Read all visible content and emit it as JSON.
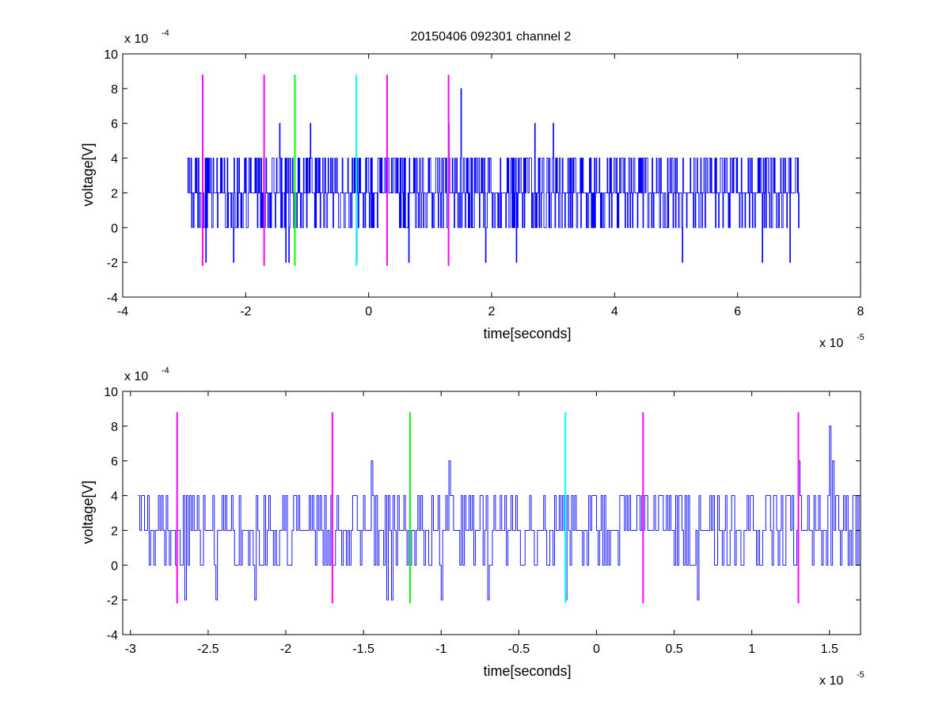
{
  "figure_title": "20150406 092301 channel 2",
  "chart_data": [
    {
      "type": "line",
      "title": "20150406 092301 channel 2",
      "xlabel": "time[seconds]",
      "ylabel": "voltage[V]",
      "x_multiplier": "x 10",
      "x_exponent": "-5",
      "y_multiplier": "x 10",
      "y_exponent": "-4",
      "xlim": [
        -4,
        8
      ],
      "ylim": [
        -4,
        10
      ],
      "x_ticks": [
        "-4",
        "-2",
        "0",
        "2",
        "4",
        "6",
        "8"
      ],
      "y_ticks": [
        "-4",
        "-2",
        "0",
        "2",
        "4",
        "6",
        "8",
        "10"
      ],
      "grid": false,
      "signal": {
        "color": "#0000ff",
        "x_start": -2.95,
        "x_end": 7.0,
        "levels": [
          -2,
          0,
          2,
          4,
          6,
          8
        ],
        "baseline": 2,
        "peaks": [
          {
            "x": -1.45,
            "y": 6
          },
          {
            "x": -0.95,
            "y": 6
          },
          {
            "x": 1.3,
            "y": 6
          },
          {
            "x": 1.5,
            "y": 8
          },
          {
            "x": 2.7,
            "y": 6
          },
          {
            "x": 3.0,
            "y": 6
          }
        ],
        "troughs": [
          {
            "x": -2.65,
            "y": -2
          },
          {
            "x": -2.2,
            "y": -2
          },
          {
            "x": -1.35,
            "y": -2
          },
          {
            "x": -1.3,
            "y": -2
          },
          {
            "x": -0.2,
            "y": -2
          },
          {
            "x": 0.65,
            "y": -2
          },
          {
            "x": 1.9,
            "y": -2
          },
          {
            "x": 2.4,
            "y": -2
          },
          {
            "x": 5.1,
            "y": -2
          },
          {
            "x": 6.4,
            "y": -2
          },
          {
            "x": 6.85,
            "y": -2
          }
        ]
      },
      "markers": [
        {
          "x": -2.7,
          "color": "#ff00ff"
        },
        {
          "x": -1.7,
          "color": "#ff00ff"
        },
        {
          "x": -1.2,
          "color": "#00ff00"
        },
        {
          "x": -0.2,
          "color": "#00ffff"
        },
        {
          "x": 0.3,
          "color": "#ff00ff"
        },
        {
          "x": 1.3,
          "color": "#ff00ff"
        }
      ],
      "marker_range": [
        -2.2,
        8.8
      ]
    },
    {
      "type": "line",
      "title": "",
      "xlabel": "time[seconds]",
      "ylabel": "voltage[V]",
      "x_multiplier": "x 10",
      "x_exponent": "-5",
      "y_multiplier": "x 10",
      "y_exponent": "-4",
      "xlim": [
        -3.05,
        1.7
      ],
      "ylim": [
        -4,
        10
      ],
      "x_ticks": [
        "-3",
        "-2.5",
        "-2",
        "-1.5",
        "-1",
        "-0.5",
        "0",
        "0.5",
        "1",
        "1.5"
      ],
      "y_ticks": [
        "-4",
        "-2",
        "0",
        "2",
        "4",
        "6",
        "8",
        "10"
      ],
      "grid": false,
      "signal": {
        "color": "#0000ff",
        "x_start": -2.95,
        "x_end": 1.7,
        "levels": [
          -2,
          0,
          2,
          4,
          6,
          8
        ],
        "baseline": 2,
        "peaks": [
          {
            "x": -1.45,
            "y": 6
          },
          {
            "x": -0.95,
            "y": 6
          },
          {
            "x": 1.3,
            "y": 6
          },
          {
            "x": 1.5,
            "y": 8
          },
          {
            "x": 1.52,
            "y": 6
          }
        ],
        "troughs": [
          {
            "x": -2.65,
            "y": -2
          },
          {
            "x": -2.45,
            "y": -2
          },
          {
            "x": -2.2,
            "y": -2
          },
          {
            "x": -1.35,
            "y": -2
          },
          {
            "x": -1.32,
            "y": -2
          },
          {
            "x": -1.0,
            "y": -2
          },
          {
            "x": -0.7,
            "y": -2
          },
          {
            "x": -0.2,
            "y": -2
          },
          {
            "x": 0.65,
            "y": -2
          }
        ]
      },
      "markers": [
        {
          "x": -2.7,
          "color": "#ff00ff"
        },
        {
          "x": -1.7,
          "color": "#ff00ff"
        },
        {
          "x": -1.2,
          "color": "#00ff00"
        },
        {
          "x": -0.2,
          "color": "#00ffff"
        },
        {
          "x": 0.3,
          "color": "#ff00ff"
        },
        {
          "x": 1.3,
          "color": "#ff00ff"
        }
      ],
      "marker_range": [
        -2.2,
        8.8
      ]
    }
  ]
}
